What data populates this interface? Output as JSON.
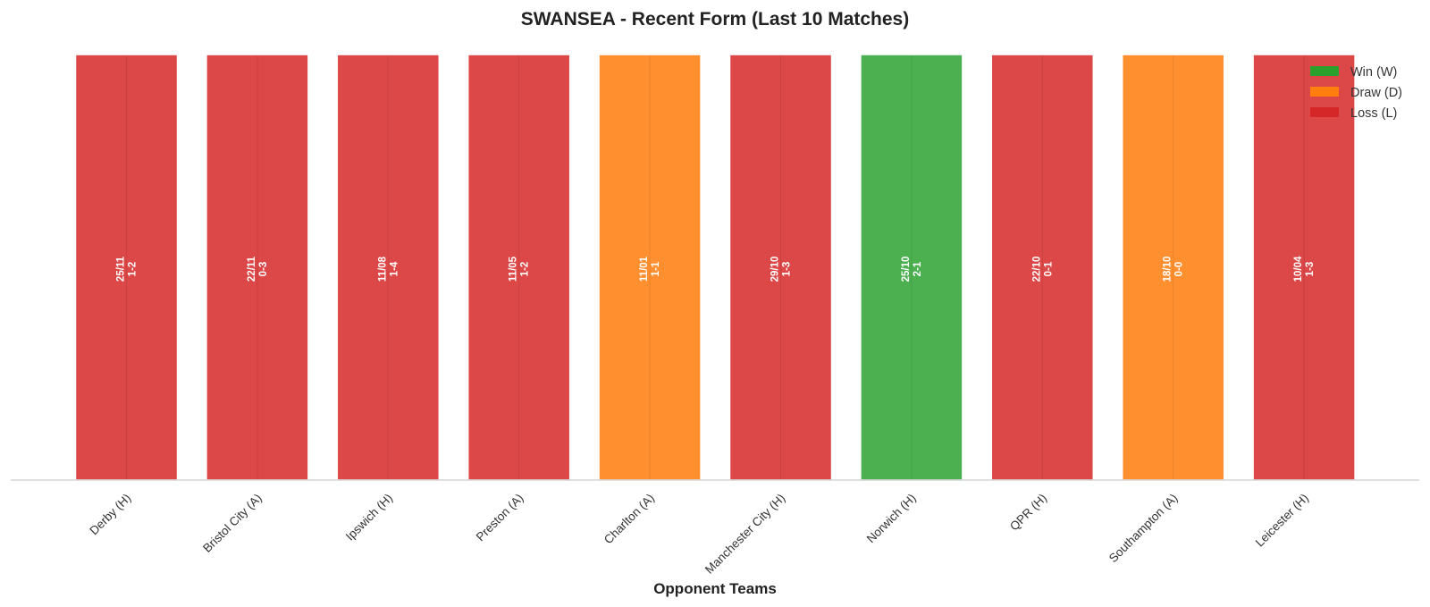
{
  "chart_data": {
    "type": "bar",
    "title": "SWANSEA - Recent Form (Last 10 Matches)",
    "xlabel": "Opponent Teams",
    "ylabel": "",
    "grid": false,
    "legend_position": "top-right",
    "categories": [
      "Derby (H)",
      "Bristol City (A)",
      "Ipswich (H)",
      "Preston (A)",
      "Charlton (A)",
      "Manchester City (H)",
      "Norwich (H)",
      "QPR (H)",
      "Southampton (A)",
      "Leicester (H)"
    ],
    "values": [
      1,
      1,
      1,
      1,
      1,
      1,
      1,
      1,
      1,
      1
    ],
    "results": [
      "L",
      "L",
      "L",
      "L",
      "D",
      "L",
      "W",
      "L",
      "D",
      "L"
    ],
    "dates": [
      "25/11",
      "22/11",
      "11/08",
      "11/05",
      "11/01",
      "29/10",
      "25/10",
      "22/10",
      "18/10",
      "10/04"
    ],
    "scores": [
      "1-2",
      "0-3",
      "1-4",
      "1-2",
      "1-1",
      "1-3",
      "2-1",
      "0-1",
      "0-0",
      "1-3"
    ],
    "legend": [
      {
        "key": "W",
        "label": "Win (W)",
        "color": "#2ca02c"
      },
      {
        "key": "D",
        "label": "Draw (D)",
        "color": "#ff7f0e"
      },
      {
        "key": "L",
        "label": "Loss (L)",
        "color": "#d62728"
      }
    ],
    "colors": {
      "W": "#4caf50",
      "D": "#ff8f2f",
      "L": "#dc4747"
    }
  }
}
